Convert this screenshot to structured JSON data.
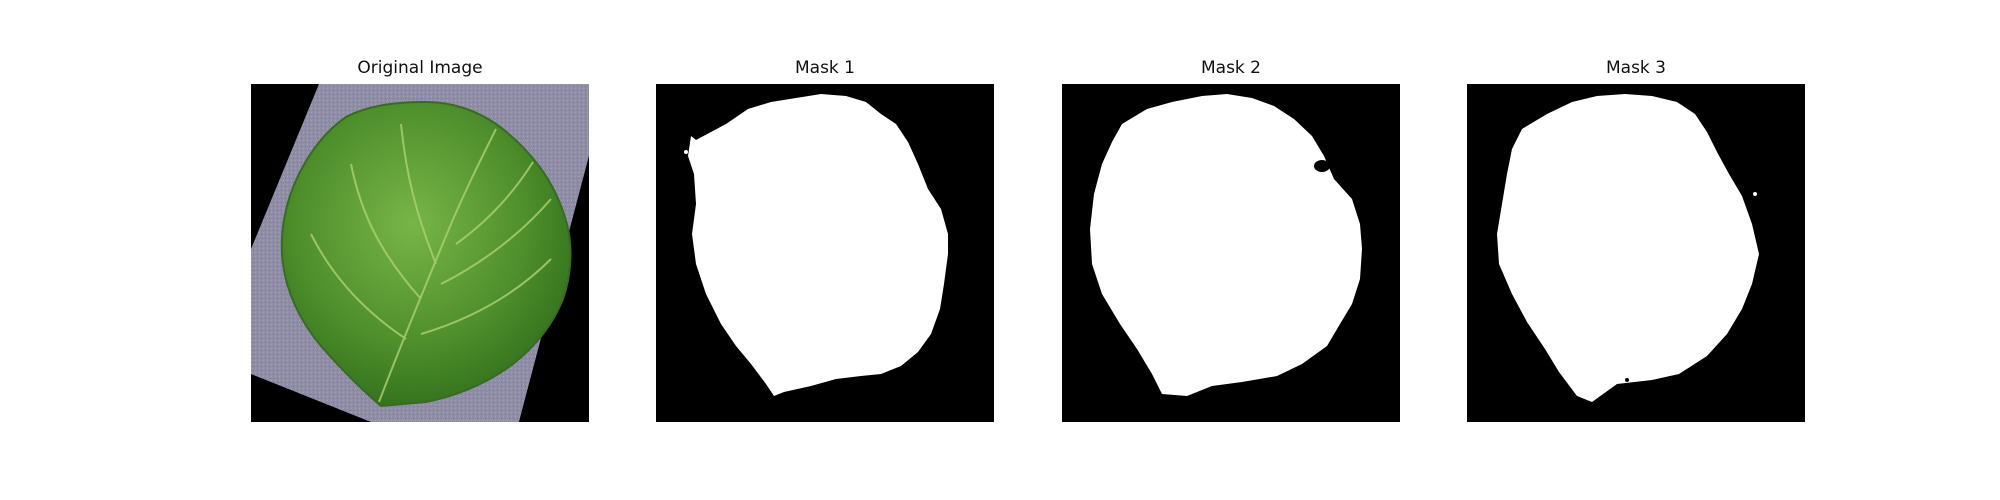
{
  "panels": [
    {
      "title": "Original Image"
    },
    {
      "title": "Mask 1"
    },
    {
      "title": "Mask 2"
    },
    {
      "title": "Mask 3"
    }
  ],
  "colors": {
    "background": "#ffffff",
    "mask_background": "#000000",
    "mask_foreground": "#ffffff",
    "paper": "#8f8ea6",
    "leaf_light": "#6fae3e",
    "leaf_dark": "#2f6e1a",
    "leaf_vein": "#a9cf6e"
  }
}
